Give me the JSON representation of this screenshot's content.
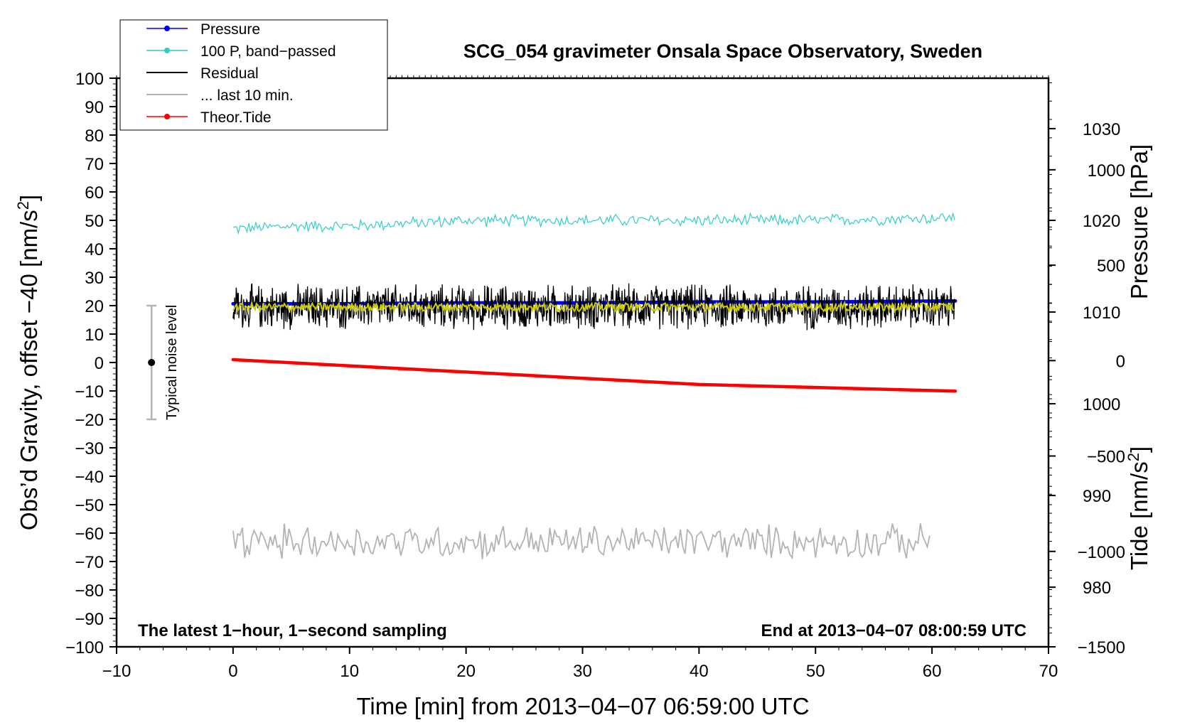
{
  "chart_data": {
    "type": "line",
    "title": "SCG_054 gravimeter Onsala Space Observatory, Sweden",
    "xlabel": "Time [min] from 2013−04−07 06:59:00 UTC",
    "ylabel": "Obs’d Gravity, offset −40 [nm/s",
    "ylabel_sup": "2",
    "ylabel_end": "]",
    "y2label": "Pressure [hPa]",
    "y3label": "Tide [nm/s",
    "y3label_sup": "2",
    "y3label_end": "]",
    "xlim": [
      -10,
      70
    ],
    "ylim": [
      -100,
      100
    ],
    "pressure_axis": {
      "range": [
        973.5,
        1035.5
      ],
      "ticks": [
        980,
        990,
        1000,
        1010,
        1020,
        1030
      ]
    },
    "tide_axis": {
      "range": [
        -1500,
        1480
      ],
      "ticks": [
        -1500,
        -1000,
        -500,
        0,
        500,
        1000
      ]
    },
    "x_ticks": [
      -10,
      0,
      10,
      20,
      30,
      40,
      50,
      60,
      70
    ],
    "x_tick_labels": [
      "−10",
      "0",
      "10",
      "20",
      "30",
      "40",
      "50",
      "60",
      "70"
    ],
    "y_ticks": [
      100,
      90,
      80,
      70,
      60,
      50,
      40,
      30,
      20,
      10,
      0,
      -10,
      -20,
      -30,
      -40,
      -50,
      -60,
      -70,
      -80,
      -90,
      -100
    ],
    "y_tick_labels": [
      "100",
      "90",
      "80",
      "70",
      "60",
      "50",
      "40",
      "30",
      "20",
      "10",
      "0",
      "−10",
      "−20",
      "−30",
      "−40",
      "−50",
      "−60",
      "−70",
      "−80",
      "−90",
      "−100"
    ],
    "y2_tick_labels": [
      "980",
      "990",
      "1000",
      "1010",
      "1020",
      "1030"
    ],
    "y3_tick_labels": [
      "−1500",
      "−1000",
      "−500",
      "0",
      "500",
      "1000"
    ],
    "grid": false,
    "legend_position": "top-left",
    "series": [
      {
        "name": "Pressure",
        "axis": "pressure",
        "color": "#0000ff",
        "style": "line-with-dots",
        "x": [
          0,
          10,
          20,
          30,
          40,
          50,
          62
        ],
        "values": [
          1010.9,
          1010.9,
          1011.0,
          1011.0,
          1011.1,
          1011.1,
          1011.2
        ]
      },
      {
        "name": "100 P, band−passed",
        "axis": "gravity",
        "color": "#33cccc",
        "style": "line-with-dots",
        "x": [
          0,
          5,
          10,
          15,
          20,
          30,
          40,
          50,
          62
        ],
        "values": [
          47,
          48,
          48,
          49,
          50,
          50,
          50,
          50,
          51
        ],
        "noise_amplitude": 2.5
      },
      {
        "name": "Residual",
        "axis": "gravity",
        "color": "#000000",
        "style": "line",
        "x": [
          0,
          62
        ],
        "values": [
          19.5,
          19.5
        ],
        "noise_amplitude": 9
      },
      {
        "name": "... last 10 min.",
        "axis": "gravity",
        "color": "#b3b3b3",
        "style": "line",
        "x": [
          0,
          60
        ],
        "values": [
          -63,
          -63
        ],
        "noise_amplitude": 7
      },
      {
        "name": "Theor.Tide",
        "axis": "tide",
        "color": "#ff0000",
        "style": "line-with-dots",
        "x": [
          0,
          20,
          40,
          62
        ],
        "values": [
          5,
          -60,
          -125,
          -160
        ]
      }
    ],
    "smoothed_residual": {
      "color": "#cccc00",
      "x": [
        0,
        62
      ],
      "values": [
        19.5,
        19.5
      ]
    },
    "noise_bar": {
      "label": "Typical noise level",
      "x": -7,
      "center": 0,
      "range": [
        -20,
        20
      ]
    },
    "annotations": {
      "left": "The latest 1−hour, 1−second sampling",
      "right": "End at 2013−04−07 08:00:59 UTC"
    }
  }
}
